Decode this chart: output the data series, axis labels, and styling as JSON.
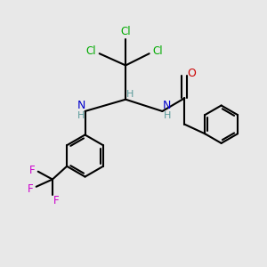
{
  "background_color": "#e8e8e8",
  "bond_color": "#000000",
  "atom_colors": {
    "C": "#000000",
    "H": "#5a9a9a",
    "N": "#0000cc",
    "O": "#cc0000",
    "Cl": "#00aa00",
    "F": "#cc00cc"
  },
  "figsize": [
    3.0,
    3.0
  ],
  "dpi": 100,
  "xlim": [
    0,
    10
  ],
  "ylim": [
    0,
    10
  ]
}
